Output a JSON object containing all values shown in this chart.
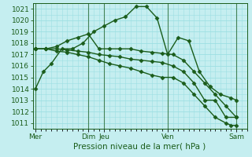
{
  "xlabel": "Pression niveau de la mer( hPa )",
  "ylim": [
    1010.5,
    1021.5
  ],
  "yticks": [
    1011,
    1012,
    1013,
    1014,
    1015,
    1016,
    1017,
    1018,
    1019,
    1020,
    1021
  ],
  "background_color": "#c5eef0",
  "grid_color": "#9ddfe2",
  "line_color": "#1a5c1a",
  "day_labels": [
    "Mer",
    "Dim",
    "Jeu",
    "Ven",
    "Sam"
  ],
  "day_positions": [
    0,
    10,
    13,
    25,
    38
  ],
  "xlim": [
    -0.5,
    40
  ],
  "series": [
    {
      "x": [
        0,
        1.5,
        3,
        5,
        7,
        9,
        11,
        13,
        15,
        17,
        19,
        21,
        23,
        25,
        27,
        29,
        31,
        33,
        35,
        37,
        38
      ],
      "y": [
        1014.0,
        1015.5,
        1016.2,
        1017.5,
        1017.5,
        1018.0,
        1019.0,
        1019.5,
        1020.0,
        1020.3,
        1021.2,
        1021.2,
        1020.2,
        1017.0,
        1018.5,
        1018.2,
        1015.5,
        1014.2,
        1013.5,
        1013.2,
        1013.0
      ]
    },
    {
      "x": [
        0,
        2,
        4,
        6,
        8,
        10,
        12,
        14,
        16,
        18,
        20,
        22,
        24,
        26,
        28,
        30,
        32,
        34,
        36,
        38
      ],
      "y": [
        1017.5,
        1017.5,
        1017.7,
        1018.2,
        1018.5,
        1018.8,
        1017.5,
        1017.5,
        1017.5,
        1017.5,
        1017.3,
        1017.2,
        1017.1,
        1017.0,
        1016.5,
        1015.5,
        1014.5,
        1013.5,
        1012.5,
        1011.5
      ]
    },
    {
      "x": [
        0,
        2,
        4,
        6,
        8,
        10,
        12,
        14,
        16,
        18,
        20,
        22,
        24,
        26,
        28,
        30,
        32,
        34,
        36,
        38
      ],
      "y": [
        1017.5,
        1017.5,
        1017.5,
        1017.4,
        1017.3,
        1017.2,
        1017.0,
        1016.9,
        1016.8,
        1016.6,
        1016.5,
        1016.4,
        1016.3,
        1016.0,
        1015.5,
        1014.5,
        1013.0,
        1013.0,
        1011.5,
        1011.5
      ]
    },
    {
      "x": [
        0,
        2,
        4,
        6,
        8,
        10,
        12,
        14,
        16,
        18,
        20,
        22,
        24,
        26,
        28,
        30,
        32,
        34,
        36,
        37,
        38
      ],
      "y": [
        1017.5,
        1017.5,
        1017.3,
        1017.2,
        1017.0,
        1016.8,
        1016.5,
        1016.2,
        1016.0,
        1015.8,
        1015.5,
        1015.2,
        1015.0,
        1015.0,
        1014.5,
        1013.5,
        1012.5,
        1011.5,
        1011.0,
        1010.8,
        1010.8
      ]
    }
  ],
  "marker": "D",
  "markersize": 2.5,
  "linewidth": 1.0,
  "xlabel_fontsize": 7.5,
  "tick_labelsize": 6.5
}
